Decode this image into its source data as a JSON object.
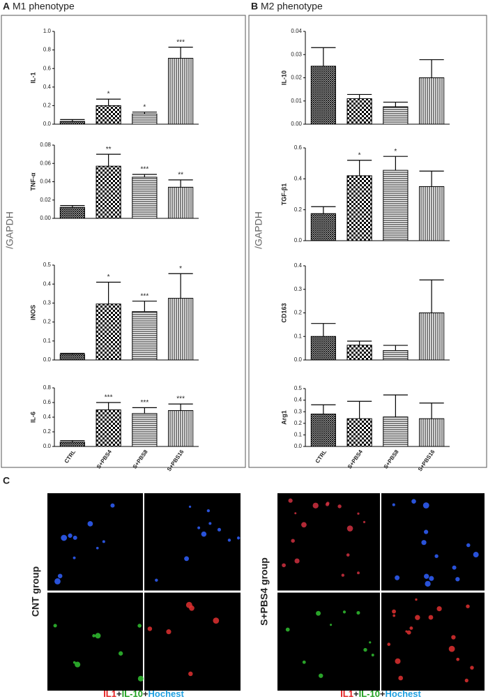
{
  "panels": [
    {
      "label": "A",
      "title": "M1 phenotype",
      "ylabel": "/GAPDH"
    },
    {
      "label": "B",
      "title": "M2 phenotype",
      "ylabel": "/GAPDH"
    }
  ],
  "chart_data": [
    {
      "type": "bar",
      "ylabel": "IL-1",
      "categories": [
        null,
        null,
        null,
        null
      ],
      "values": [
        0.03,
        0.2,
        0.11,
        0.71
      ],
      "errors": [
        0.02,
        0.07,
        0.02,
        0.12
      ],
      "annotations": [
        null,
        "*",
        "*",
        "***"
      ],
      "ylim": [
        0,
        1
      ],
      "yticks": [
        {
          "value": 0,
          "label": "0.0"
        },
        0.2,
        0.4,
        0.6,
        0.8,
        {
          "value": 1,
          "label": "1.0"
        }
      ]
    },
    {
      "type": "bar",
      "ylabel": "TNF-α",
      "categories": [
        null,
        null,
        null,
        null
      ],
      "values": [
        0.012,
        0.057,
        0.045,
        0.034
      ],
      "errors": [
        0.002,
        0.013,
        0.003,
        0.008
      ],
      "annotations": [
        null,
        "**",
        "***",
        "**"
      ],
      "ylim": [
        0,
        0.08
      ],
      "yticks": [
        {
          "value": 0,
          "label": "0.00"
        },
        0.02,
        0.04,
        0.06,
        0.08
      ]
    },
    {
      "type": "bar",
      "ylabel": "iNOS",
      "categories": [
        null,
        null,
        null,
        null
      ],
      "values": [
        0.03,
        0.295,
        0.255,
        0.325
      ],
      "errors": [
        0.005,
        0.115,
        0.055,
        0.13
      ],
      "annotations": [
        null,
        "*",
        "***",
        "*"
      ],
      "ylim": [
        0,
        0.5
      ],
      "yticks": [
        {
          "value": 0,
          "label": "0.0"
        },
        0.1,
        0.2,
        0.3,
        0.4,
        0.5
      ]
    },
    {
      "type": "bar",
      "ylabel": "IL-6",
      "categories": [
        "CTRL",
        "S+PBS4",
        "S+PBS8",
        "S+PBS16"
      ],
      "values": [
        0.06,
        0.5,
        0.45,
        0.49
      ],
      "errors": [
        0.02,
        0.1,
        0.08,
        0.09
      ],
      "annotations": [
        null,
        "***",
        "***",
        "***"
      ],
      "ylim": [
        0,
        0.8
      ],
      "yticks": [
        {
          "value": 0,
          "label": "0.0"
        },
        0.2,
        0.4,
        0.6,
        0.8
      ]
    },
    {
      "type": "bar",
      "ylabel": "IL-10",
      "categories": [
        null,
        null,
        null,
        null
      ],
      "values": [
        0.025,
        0.011,
        0.0075,
        0.02
      ],
      "errors": [
        0.008,
        0.0018,
        0.002,
        0.0078
      ],
      "annotations": [
        null,
        null,
        null,
        null
      ],
      "ylim": [
        0,
        0.04
      ],
      "yticks": [
        {
          "value": 0,
          "label": "0.00"
        },
        0.01,
        0.02,
        0.03,
        0.04
      ]
    },
    {
      "type": "bar",
      "ylabel": "TGF-β1",
      "categories": [
        null,
        null,
        null,
        null
      ],
      "values": [
        0.175,
        0.42,
        0.455,
        0.35
      ],
      "errors": [
        0.045,
        0.1,
        0.09,
        0.1
      ],
      "annotations": [
        null,
        "*",
        "*",
        null
      ],
      "ylim": [
        0,
        0.6
      ],
      "yticks": [
        {
          "value": 0,
          "label": "0.0"
        },
        0.2,
        0.4,
        0.6
      ]
    },
    {
      "type": "bar",
      "ylabel": "CD163",
      "categories": [
        null,
        null,
        null,
        null
      ],
      "values": [
        0.1,
        0.063,
        0.04,
        0.2
      ],
      "errors": [
        0.055,
        0.017,
        0.022,
        0.14
      ],
      "annotations": [
        null,
        null,
        null,
        null
      ],
      "ylim": [
        0,
        0.4
      ],
      "yticks": [
        {
          "value": 0,
          "label": "0.0"
        },
        0.1,
        0.2,
        0.3,
        0.4
      ]
    },
    {
      "type": "bar",
      "ylabel": "Arg1",
      "categories": [
        "CTRL",
        "S+PBS4",
        "S+PBS8",
        "S+PBS16"
      ],
      "values": [
        0.28,
        0.24,
        0.255,
        0.24
      ],
      "errors": [
        0.08,
        0.15,
        0.19,
        0.135
      ],
      "annotations": [
        null,
        null,
        null,
        null
      ],
      "ylim": [
        0,
        0.5
      ],
      "yticks": [
        {
          "value": 0,
          "label": "0.0"
        },
        0.1,
        0.2,
        0.3,
        0.4,
        0.5
      ]
    }
  ],
  "panel_c": {
    "label": "C",
    "groups": [
      "CNT group",
      "S+PBS4 group"
    ],
    "caption": [
      "IL1",
      "+",
      "IL-10",
      "+",
      "Hochest"
    ]
  }
}
